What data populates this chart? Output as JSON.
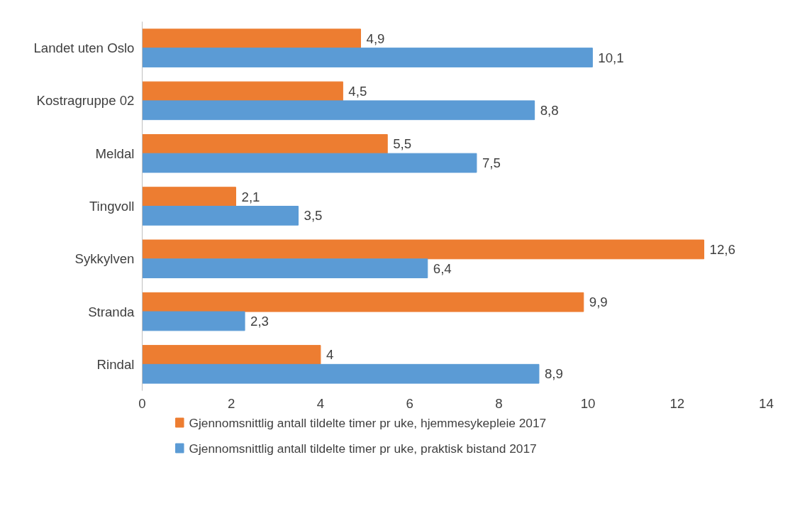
{
  "chart_data": {
    "type": "bar",
    "orientation": "horizontal",
    "categories": [
      "Landet uten Oslo",
      "Kostragruppe 02",
      "Meldal",
      "Tingvoll",
      "Sykkylven",
      "Stranda",
      "Rindal"
    ],
    "series": [
      {
        "name": "Gjennomsnittlig antall tildelte timer pr uke, hjemmesykepleie 2017",
        "color": "#ed7d31",
        "values": [
          4.9,
          4.5,
          5.5,
          2.1,
          12.6,
          9.9,
          4
        ],
        "value_labels": [
          "4,9",
          "4,5",
          "5,5",
          "2,1",
          "12,6",
          "9,9",
          "4"
        ]
      },
      {
        "name": "Gjennomsnittlig antall tildelte timer pr uke, praktisk bistand 2017",
        "color": "#5b9bd5",
        "values": [
          10.1,
          8.8,
          7.5,
          3.5,
          6.4,
          2.3,
          8.9
        ],
        "value_labels": [
          "10,1",
          "8,8",
          "7,5",
          "3,5",
          "6,4",
          "2,3",
          "8,9"
        ]
      }
    ],
    "xlim": [
      0,
      14
    ],
    "xticks": [
      0,
      2,
      4,
      6,
      8,
      10,
      12,
      14
    ],
    "grid": false,
    "legend": "bottom"
  }
}
